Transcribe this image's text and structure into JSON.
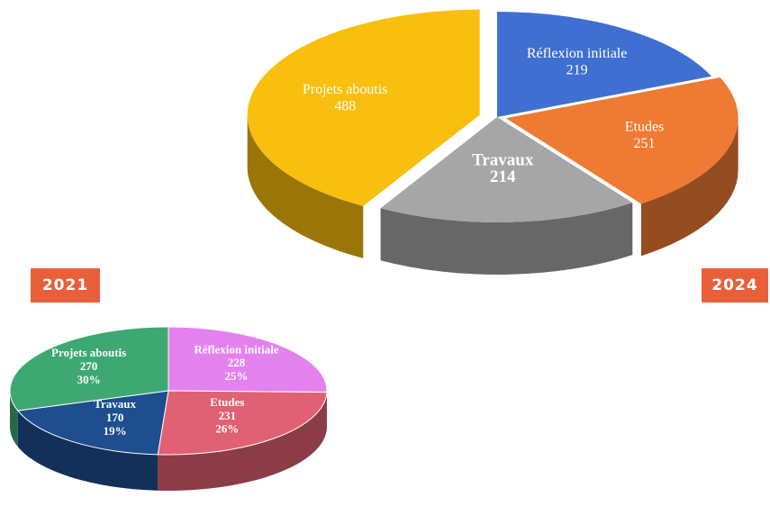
{
  "badges": {
    "left": "2021",
    "right": "2024"
  },
  "chart_data": [
    {
      "type": "pie",
      "year": "2021",
      "slices": [
        {
          "label": "Réflexion initiale",
          "value": 228,
          "percent": "25%",
          "color": "#e382ef"
        },
        {
          "label": "Etudes",
          "value": 231,
          "percent": "26%",
          "color": "#e06173"
        },
        {
          "label": "Travaux",
          "value": 170,
          "percent": "19%",
          "color": "#1f4e8f"
        },
        {
          "label": "Projets aboutis",
          "value": 270,
          "percent": "30%",
          "color": "#3ea873"
        }
      ]
    },
    {
      "type": "pie",
      "year": "2024",
      "slices": [
        {
          "label": "Réflexion initiale",
          "value": 219,
          "color": "#3f6fd1"
        },
        {
          "label": "Etudes",
          "value": 251,
          "color": "#ee7a34"
        },
        {
          "label": "Travaux",
          "value": 214,
          "color": "#a6a6a6"
        },
        {
          "label": "Projets aboutis",
          "value": 488,
          "color": "#f8bf0f"
        }
      ]
    }
  ]
}
